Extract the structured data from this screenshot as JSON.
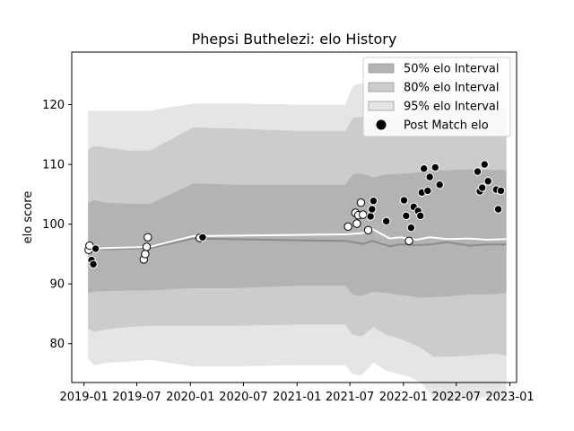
{
  "chart_data": {
    "type": "line",
    "title": "Phepsi Buthelezi: elo History",
    "xlabel": "",
    "ylabel": "elo score",
    "xlim": [
      "2018-11-20",
      "2023-01-24"
    ],
    "ylim": [
      73.5,
      128.8
    ],
    "x_ticks": [
      "2019-01",
      "2019-07",
      "2020-01",
      "2020-07",
      "2021-01",
      "2021-07",
      "2022-01",
      "2022-07",
      "2023-01"
    ],
    "y_ticks": [
      80,
      90,
      100,
      110,
      120
    ],
    "grid": false,
    "legend_position": "top-right",
    "legend": [
      {
        "label": "50% elo Interval",
        "swatch": "band",
        "color": "#b3b3b3"
      },
      {
        "label": "80% elo Interval",
        "swatch": "band",
        "color": "#cccccc"
      },
      {
        "label": "95% elo Interval",
        "swatch": "band",
        "color": "#e5e5e5"
      },
      {
        "label": "Post Match elo",
        "swatch": "marker",
        "color": "#000000"
      }
    ],
    "bands": [
      {
        "name": "95% elo Interval",
        "color": "#e5e5e5",
        "x": [
          "2019-01-15",
          "2019-02-05",
          "2019-03-20",
          "2019-06-01",
          "2019-08-15",
          "2020-01-10",
          "2020-06-01",
          "2021-01-01",
          "2021-06-15",
          "2021-07-12",
          "2021-08-10",
          "2021-09-20",
          "2021-11-01",
          "2021-12-10",
          "2022-01-20",
          "2022-03-01",
          "2022-04-15",
          "2022-06-01",
          "2022-08-15",
          "2022-10-01",
          "2022-11-15",
          "2022-12-20"
        ],
        "upper": [
          119,
          119,
          119,
          119,
          119,
          120.2,
          120.2,
          120.0,
          120.0,
          123.2,
          123.6,
          122.6,
          123.0,
          123.2,
          123.5,
          124.0,
          124.5,
          124.2,
          124.5,
          124.3,
          124.2,
          124.0
        ],
        "lower": [
          77.5,
          76.4,
          76.8,
          77.0,
          77.3,
          76.2,
          76.2,
          76.4,
          76.4,
          74.8,
          74.7,
          76.8,
          75.5,
          75.0,
          74.5,
          73.5,
          71.0,
          70.5,
          70.8,
          71.0,
          71.3,
          70.8
        ]
      },
      {
        "name": "80% elo Interval",
        "color": "#cccccc",
        "x": [
          "2019-01-15",
          "2019-02-05",
          "2019-03-20",
          "2019-06-01",
          "2019-08-15",
          "2020-01-10",
          "2020-06-01",
          "2021-01-01",
          "2021-06-15",
          "2021-07-12",
          "2021-08-10",
          "2021-09-20",
          "2021-11-01",
          "2021-12-10",
          "2022-01-20",
          "2022-03-01",
          "2022-04-15",
          "2022-06-01",
          "2022-08-15",
          "2022-10-01",
          "2022-11-15",
          "2022-12-20"
        ],
        "upper": [
          112.5,
          113.1,
          112.8,
          112.3,
          112.3,
          116.2,
          116.0,
          115.6,
          115.6,
          117.8,
          118.0,
          117.2,
          117.8,
          118.2,
          118.5,
          119.0,
          119.3,
          119.0,
          119.5,
          119.3,
          119.2,
          119.0
        ],
        "lower": [
          82.5,
          82.0,
          82.4,
          82.8,
          83.0,
          83.0,
          83.0,
          83.2,
          83.2,
          81.5,
          81.2,
          82.8,
          81.5,
          81.0,
          80.2,
          79.3,
          77.8,
          77.8,
          78.0,
          78.2,
          78.3,
          78.0
        ]
      },
      {
        "name": "50% elo Interval",
        "color": "#b3b3b3",
        "x": [
          "2019-01-15",
          "2019-02-05",
          "2019-03-20",
          "2019-06-01",
          "2019-08-15",
          "2020-01-10",
          "2020-06-01",
          "2021-01-01",
          "2021-06-15",
          "2021-07-12",
          "2021-08-10",
          "2021-09-20",
          "2021-11-01",
          "2021-12-10",
          "2022-01-20",
          "2022-03-01",
          "2022-04-15",
          "2022-06-01",
          "2022-08-15",
          "2022-10-01",
          "2022-11-15",
          "2022-12-20"
        ],
        "upper": [
          103.6,
          104.0,
          103.6,
          103.4,
          103.4,
          106.8,
          106.6,
          106.6,
          106.6,
          108.4,
          108.5,
          107.8,
          108.3,
          108.4,
          108.5,
          108.7,
          109.0,
          109.0,
          109.2,
          109.1,
          109.1,
          109.0
        ],
        "lower": [
          88.5,
          88.7,
          88.8,
          88.9,
          88.9,
          89.3,
          89.3,
          89.7,
          89.7,
          88.2,
          88.0,
          88.7,
          88.5,
          88.2,
          88.0,
          87.7,
          87.8,
          87.9,
          88.2,
          88.2,
          88.3,
          88.5
        ]
      }
    ],
    "series": [
      {
        "name": "median",
        "color": "#8c8c8c",
        "x": [
          "2019-01-15",
          "2019-03-15",
          "2019-08-15",
          "2020-01-10",
          "2021-01-01",
          "2021-06-15",
          "2021-08-15",
          "2021-09-15",
          "2021-11-15",
          "2021-12-20",
          "2022-02-15",
          "2022-04-01",
          "2022-06-01",
          "2022-08-15",
          "2022-10-15",
          "2022-12-20"
        ],
        "values": [
          95.8,
          95.8,
          96.0,
          97.6,
          97.3,
          97.2,
          96.7,
          97.2,
          96.3,
          96.6,
          96.5,
          96.6,
          97.0,
          96.4,
          96.6,
          96.6
        ]
      },
      {
        "name": "mean",
        "color": "#ffffff",
        "x": [
          "2019-01-15",
          "2019-03-15",
          "2019-08-15",
          "2020-01-10",
          "2021-01-01",
          "2021-06-15",
          "2021-08-15",
          "2021-09-15",
          "2021-11-15",
          "2021-12-20",
          "2022-02-15",
          "2022-04-01",
          "2022-06-01",
          "2022-08-15",
          "2022-10-15",
          "2022-12-20"
        ],
        "values": [
          95.8,
          96.0,
          96.2,
          98.0,
          98.2,
          98.3,
          98.5,
          99.2,
          97.6,
          97.8,
          97.4,
          97.8,
          97.5,
          97.6,
          97.4,
          97.5
        ]
      }
    ],
    "points": [
      {
        "date": "2019-01-17",
        "elo": 95.7,
        "fill": "#ffffff"
      },
      {
        "date": "2019-01-20",
        "elo": 96.4,
        "fill": "#ffffff"
      },
      {
        "date": "2019-01-27",
        "elo": 94.0,
        "fill": "#000000"
      },
      {
        "date": "2019-02-02",
        "elo": 93.3,
        "fill": "#000000"
      },
      {
        "date": "2019-02-10",
        "elo": 95.9,
        "fill": "#000000"
      },
      {
        "date": "2019-07-25",
        "elo": 94.1,
        "fill": "#ffffff"
      },
      {
        "date": "2019-07-30",
        "elo": 95.0,
        "fill": "#ffffff"
      },
      {
        "date": "2019-08-04",
        "elo": 96.2,
        "fill": "#ffffff"
      },
      {
        "date": "2019-08-08",
        "elo": 97.8,
        "fill": "#ffffff"
      },
      {
        "date": "2020-02-02",
        "elo": 97.7,
        "fill": "#ffffff"
      },
      {
        "date": "2020-02-12",
        "elo": 97.8,
        "fill": "#000000"
      },
      {
        "date": "2021-06-25",
        "elo": 99.6,
        "fill": "#ffffff"
      },
      {
        "date": "2021-07-20",
        "elo": 101.9,
        "fill": "#ffffff"
      },
      {
        "date": "2021-07-25",
        "elo": 100.1,
        "fill": "#ffffff"
      },
      {
        "date": "2021-07-30",
        "elo": 101.5,
        "fill": "#ffffff"
      },
      {
        "date": "2021-08-08",
        "elo": 103.6,
        "fill": "#ffffff"
      },
      {
        "date": "2021-08-15",
        "elo": 101.6,
        "fill": "#ffffff"
      },
      {
        "date": "2021-09-02",
        "elo": 99.0,
        "fill": "#ffffff"
      },
      {
        "date": "2021-09-10",
        "elo": 101.3,
        "fill": "#000000"
      },
      {
        "date": "2021-09-15",
        "elo": 102.5,
        "fill": "#000000"
      },
      {
        "date": "2021-09-20",
        "elo": 103.9,
        "fill": "#000000"
      },
      {
        "date": "2021-11-03",
        "elo": 100.5,
        "fill": "#000000"
      },
      {
        "date": "2022-01-03",
        "elo": 104.0,
        "fill": "#000000"
      },
      {
        "date": "2022-01-10",
        "elo": 101.4,
        "fill": "#000000"
      },
      {
        "date": "2022-01-20",
        "elo": 97.2,
        "fill": "#ffffff"
      },
      {
        "date": "2022-01-27",
        "elo": 99.4,
        "fill": "#000000"
      },
      {
        "date": "2022-02-05",
        "elo": 102.9,
        "fill": "#000000"
      },
      {
        "date": "2022-02-20",
        "elo": 102.2,
        "fill": "#000000"
      },
      {
        "date": "2022-02-28",
        "elo": 101.4,
        "fill": "#000000"
      },
      {
        "date": "2022-03-05",
        "elo": 105.3,
        "fill": "#000000"
      },
      {
        "date": "2022-03-12",
        "elo": 109.3,
        "fill": "#000000"
      },
      {
        "date": "2022-03-25",
        "elo": 105.6,
        "fill": "#000000"
      },
      {
        "date": "2022-04-01",
        "elo": 107.9,
        "fill": "#000000"
      },
      {
        "date": "2022-04-20",
        "elo": 109.5,
        "fill": "#000000"
      },
      {
        "date": "2022-05-05",
        "elo": 106.6,
        "fill": "#000000"
      },
      {
        "date": "2022-09-12",
        "elo": 108.8,
        "fill": "#000000"
      },
      {
        "date": "2022-09-20",
        "elo": 105.5,
        "fill": "#000000"
      },
      {
        "date": "2022-09-28",
        "elo": 106.1,
        "fill": "#000000"
      },
      {
        "date": "2022-10-06",
        "elo": 110.0,
        "fill": "#000000"
      },
      {
        "date": "2022-10-18",
        "elo": 107.2,
        "fill": "#000000"
      },
      {
        "date": "2022-11-15",
        "elo": 105.8,
        "fill": "#000000"
      },
      {
        "date": "2022-11-22",
        "elo": 102.5,
        "fill": "#000000"
      },
      {
        "date": "2022-12-01",
        "elo": 105.6,
        "fill": "#000000"
      }
    ]
  }
}
